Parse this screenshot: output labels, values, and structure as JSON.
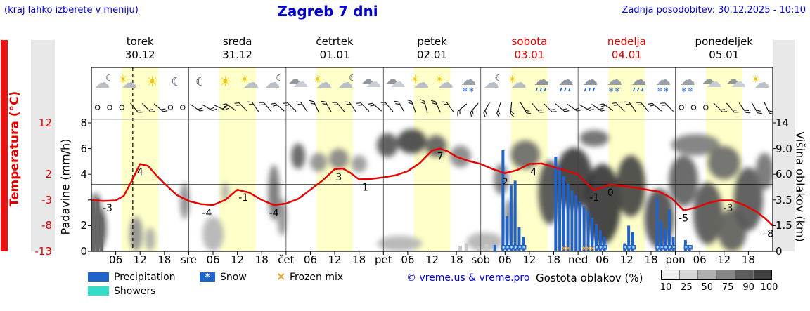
{
  "header": {
    "hint": "(kraj lahko izberete v meniju)",
    "title": "Zagreb 7 dni",
    "updated": "Zadnja posodobitev: 30.12.2025 - 10:10"
  },
  "colors": {
    "blue": "#0000cc",
    "red": "#dd0000",
    "temp_line": "#e60000",
    "precipitation": "#1f63c9",
    "showers": "#35dcc8",
    "frozen": "#f0a028",
    "daylight_band": "#ffffc9",
    "axis_strip": "#e8e8e8",
    "left_strip": "#ee1111",
    "colorbar": [
      "#efefef",
      "#d8d8d8",
      "#b0b0b0",
      "#868686",
      "#5c5c5c",
      "#3f3f3f"
    ]
  },
  "axes": {
    "left_temp": {
      "label": "Temperatura (°C)",
      "ticks": [
        "12",
        "2",
        "-3",
        "-8",
        "-13"
      ]
    },
    "left_precip": {
      "label": "Padavine (mm/h)",
      "ticks": [
        "8",
        "6",
        "4",
        "2",
        "0"
      ]
    },
    "right_cloud": {
      "label": "Višina oblakov (km)",
      "ticks": [
        "14",
        "9.0",
        "6.0",
        "3.5",
        "1.5",
        "0"
      ]
    }
  },
  "days": [
    {
      "name": "torek",
      "date": "30.12",
      "highlight": false,
      "icons": [
        "cloud-moon",
        "sun-cloud",
        "sun",
        "moon"
      ]
    },
    {
      "name": "sreda",
      "date": "31.12",
      "highlight": false,
      "icons": [
        "moon",
        "sun",
        "sun-cloud",
        "cloud-moon"
      ]
    },
    {
      "name": "četrtek",
      "date": "01.01",
      "highlight": false,
      "icons": [
        "cloud",
        "sun-cloud",
        "cloud-moon",
        "cloud"
      ]
    },
    {
      "name": "petek",
      "date": "02.01",
      "highlight": false,
      "icons": [
        "cloud",
        "sun-cloud",
        "sun-cloud",
        "cloud-snow"
      ]
    },
    {
      "name": "sobota",
      "date": "03.01",
      "highlight": true,
      "icons": [
        "cloud-moon",
        "sun-cloud",
        "cloud-rain",
        "cloud-rain"
      ]
    },
    {
      "name": "nedelja",
      "date": "04.01",
      "highlight": true,
      "icons": [
        "cloud-rain",
        "cloud-snow",
        "cloud-rain",
        "cloud-snow"
      ]
    },
    {
      "name": "ponedeljek",
      "date": "05.01",
      "highlight": false,
      "icons": [
        "cloud-snow",
        "cloud",
        "cloud",
        "sun-cloud"
      ]
    }
  ],
  "xticks": [
    {
      "label": "06",
      "t": 6
    },
    {
      "label": "12",
      "t": 12
    },
    {
      "label": "18",
      "t": 18
    },
    {
      "label": "sre",
      "t": 24
    },
    {
      "label": "06",
      "t": 30
    },
    {
      "label": "12",
      "t": 36
    },
    {
      "label": "18",
      "t": 42
    },
    {
      "label": "čet",
      "t": 48
    },
    {
      "label": "06",
      "t": 54
    },
    {
      "label": "12",
      "t": 60
    },
    {
      "label": "18",
      "t": 66
    },
    {
      "label": "pet",
      "t": 72
    },
    {
      "label": "06",
      "t": 78
    },
    {
      "label": "12",
      "t": 84
    },
    {
      "label": "18",
      "t": 90
    },
    {
      "label": "sob",
      "t": 96
    },
    {
      "label": "06",
      "t": 102
    },
    {
      "label": "12",
      "t": 108
    },
    {
      "label": "18",
      "t": 114
    },
    {
      "label": "ned",
      "t": 120
    },
    {
      "label": "06",
      "t": 126
    },
    {
      "label": "12",
      "t": 132
    },
    {
      "label": "18",
      "t": 138
    },
    {
      "label": "pon",
      "t": 144
    },
    {
      "label": "06",
      "t": 150
    },
    {
      "label": "12",
      "t": 156
    },
    {
      "label": "18",
      "t": 162
    }
  ],
  "legend": {
    "precipitation": "Precipitation",
    "snow": "Snow",
    "frozen": "Frozen mix",
    "showers": "Showers",
    "snow_symbol": "*",
    "frozen_symbol": "×",
    "credit": "© vreme.us & vreme.pro",
    "cloud_density": {
      "label": "Gostota oblakov (%)",
      "ticks": [
        "10",
        "25",
        "50",
        "75",
        "90",
        "100"
      ]
    }
  },
  "chart_data": {
    "type": "line",
    "x_unit": "hours from 30.12 00:00",
    "ylim_temp": [
      -13,
      12
    ],
    "ylim_precip": [
      0,
      8
    ],
    "cloud_height_ticks_km": [
      0,
      1.5,
      3.5,
      6,
      9,
      14
    ],
    "now_t": 10.2,
    "zero_line_c": 0,
    "daylight": {
      "start_h": 7.5,
      "end_h": 16.5
    },
    "temperature": {
      "x": [
        0,
        3,
        6,
        8,
        10,
        12,
        14,
        16,
        18,
        21,
        24,
        27,
        30,
        33,
        36,
        39,
        42,
        45,
        48,
        51,
        54,
        57,
        60,
        62,
        64,
        66,
        69,
        72,
        75,
        78,
        81,
        84,
        86,
        88,
        90,
        93,
        96,
        99,
        102,
        105,
        108,
        111,
        114,
        117,
        120,
        122,
        124,
        126,
        128,
        131,
        134,
        137,
        140,
        143,
        146,
        149,
        152,
        155,
        158,
        161,
        164,
        166,
        168
      ],
      "c": [
        -3,
        -3.2,
        -3.1,
        -2.2,
        0.8,
        4,
        3.6,
        1.8,
        0.2,
        -2,
        -3.2,
        -3.8,
        -4,
        -3,
        -1,
        -1.6,
        -3,
        -4,
        -3.7,
        -2.8,
        -1,
        0.8,
        3,
        3.1,
        2.2,
        1,
        1.1,
        1.4,
        1.8,
        2.6,
        4.2,
        6.6,
        7,
        6.4,
        5.4,
        4.6,
        4,
        3,
        2.2,
        2.8,
        4,
        4.1,
        3.4,
        2.7,
        2,
        0.3,
        -1.1,
        -0.5,
        0,
        -0.3,
        -0.6,
        -1,
        -1.4,
        -2.6,
        -5,
        -4.5,
        -3.6,
        -3.1,
        -3.1,
        -4,
        -5.3,
        -6.5,
        -8
      ]
    },
    "temp_labels": [
      {
        "t": 4,
        "v": -3
      },
      {
        "t": 12,
        "v": 4
      },
      {
        "t": 28.5,
        "v": -4
      },
      {
        "t": 37.5,
        "v": -1
      },
      {
        "t": 45,
        "v": -4
      },
      {
        "t": 61,
        "v": 3
      },
      {
        "t": 67.5,
        "v": 1
      },
      {
        "t": 86,
        "v": 7
      },
      {
        "t": 102,
        "v": 2
      },
      {
        "t": 109,
        "v": 4
      },
      {
        "t": 124,
        "v": -1
      },
      {
        "t": 128,
        "v": 0
      },
      {
        "t": 146,
        "v": -5
      },
      {
        "t": 157,
        "v": -3
      },
      {
        "t": 167,
        "v": -8
      }
    ],
    "precipitation_bars": [
      {
        "t": 99,
        "v": 0.4
      },
      {
        "t": 101,
        "v": 6.3
      },
      {
        "t": 102,
        "v": 2.2
      },
      {
        "t": 103,
        "v": 4.1
      },
      {
        "t": 104,
        "v": 4.4
      },
      {
        "t": 105,
        "v": 1.5
      },
      {
        "t": 106,
        "v": 0.9
      },
      {
        "t": 114,
        "v": 5.9
      },
      {
        "t": 115,
        "v": 5.3
      },
      {
        "t": 116,
        "v": 4.7
      },
      {
        "t": 117,
        "v": 4.2
      },
      {
        "t": 118,
        "v": 3.8
      },
      {
        "t": 119,
        "v": 3.5
      },
      {
        "t": 120,
        "v": 3.1
      },
      {
        "t": 121,
        "v": 2.8
      },
      {
        "t": 122,
        "v": 2.5
      },
      {
        "t": 123,
        "v": 2.1
      },
      {
        "t": 124,
        "v": 1.7
      },
      {
        "t": 125,
        "v": 1.3
      },
      {
        "t": 126,
        "v": 0.9
      },
      {
        "t": 131,
        "v": 0.5
      },
      {
        "t": 132,
        "v": 1.6
      },
      {
        "t": 133,
        "v": 1.2
      },
      {
        "t": 139,
        "v": 3.3
      },
      {
        "t": 140,
        "v": 1.9
      },
      {
        "t": 141,
        "v": 1.4
      },
      {
        "t": 142,
        "v": 2.6
      },
      {
        "t": 143,
        "v": 0.9
      },
      {
        "t": 146,
        "v": 0.7
      },
      {
        "t": 147,
        "v": 0.4
      }
    ],
    "snow_markers": [
      101,
      102,
      103,
      104,
      105,
      106,
      124,
      125,
      126,
      131,
      132,
      133,
      139,
      140,
      141,
      142,
      143,
      146,
      147
    ],
    "frozen_markers": [
      116,
      117,
      121,
      122,
      123
    ],
    "ground_gray_bars": [
      {
        "t": 0.1,
        "v": 3.1
      },
      {
        "t": 1.1,
        "v": 3.3
      },
      {
        "t": 2.1,
        "v": 2.1
      }
    ],
    "low_gray_bars": [
      {
        "t": 90.5,
        "v": 0.35
      },
      {
        "t": 92,
        "v": 0.5
      },
      {
        "t": 95,
        "v": 0.3
      },
      {
        "t": 97,
        "v": 0.45
      },
      {
        "t": 99,
        "v": 0.3
      }
    ],
    "cloud_blobs": [
      {
        "t": 1.5,
        "h": 1.5,
        "rt": 2.2,
        "rh": 1.6,
        "d": 0.85
      },
      {
        "t": 1,
        "h": 3.3,
        "rt": 1.4,
        "rh": 0.9,
        "d": 0.6
      },
      {
        "t": 11,
        "h": 1.1,
        "rt": 1.6,
        "rh": 1.1,
        "d": 0.5
      },
      {
        "t": 14.5,
        "h": 0.7,
        "rt": 1.2,
        "rh": 0.7,
        "d": 0.35
      },
      {
        "t": 23,
        "h": 3.6,
        "rt": 1.1,
        "rh": 1.6,
        "d": 0.55
      },
      {
        "t": 30,
        "h": 1.1,
        "rt": 2.6,
        "rh": 1.1,
        "d": 0.3
      },
      {
        "t": 33,
        "h": 4.3,
        "rt": 0.9,
        "rh": 0.9,
        "d": 0.35
      },
      {
        "t": 45,
        "h": 4.5,
        "rt": 1.4,
        "rh": 2.6,
        "d": 0.65
      },
      {
        "t": 47,
        "h": 2.3,
        "rt": 1.1,
        "rh": 1.4,
        "d": 0.5
      },
      {
        "t": 51,
        "h": 8.3,
        "rt": 1.7,
        "rh": 1.7,
        "d": 0.75
      },
      {
        "t": 56,
        "h": 7.4,
        "rt": 2.1,
        "rh": 1.1,
        "d": 0.5
      },
      {
        "t": 61,
        "h": 7.8,
        "rt": 2.4,
        "rh": 1.2,
        "d": 0.55
      },
      {
        "t": 66,
        "h": 7.2,
        "rt": 1.9,
        "rh": 1,
        "d": 0.45
      },
      {
        "t": 73,
        "h": 10,
        "rt": 2.6,
        "rh": 2,
        "d": 0.8
      },
      {
        "t": 79,
        "h": 10.6,
        "rt": 3.6,
        "rh": 2.2,
        "d": 0.9
      },
      {
        "t": 85,
        "h": 9.8,
        "rt": 2.6,
        "rh": 1.8,
        "d": 0.75
      },
      {
        "t": 76,
        "h": 0.4,
        "rt": 5.5,
        "rh": 0.5,
        "d": 0.3
      },
      {
        "t": 91,
        "h": 8.2,
        "rt": 2.6,
        "rh": 1.4,
        "d": 0.55
      },
      {
        "t": 97,
        "h": 0.5,
        "rt": 4.5,
        "rh": 0.6,
        "d": 0.3
      },
      {
        "t": 101,
        "h": 5.6,
        "rt": 1.8,
        "rh": 1.6,
        "d": 0.6
      },
      {
        "t": 103,
        "h": 2,
        "rt": 1.4,
        "rh": 1.6,
        "d": 0.5
      },
      {
        "t": 107,
        "h": 8.6,
        "rt": 3.6,
        "rh": 2,
        "d": 0.7
      },
      {
        "t": 113,
        "h": 4.6,
        "rt": 2.8,
        "rh": 3,
        "d": 0.85
      },
      {
        "t": 119,
        "h": 6,
        "rt": 4.5,
        "rh": 3.2,
        "d": 0.95
      },
      {
        "t": 126,
        "h": 3.8,
        "rt": 4.5,
        "rh": 3.4,
        "d": 0.97
      },
      {
        "t": 124,
        "h": 11,
        "rt": 3.6,
        "rh": 1.6,
        "d": 0.7
      },
      {
        "t": 133,
        "h": 5.2,
        "rt": 3.6,
        "rh": 3,
        "d": 0.9
      },
      {
        "t": 140,
        "h": 2.4,
        "rt": 3.6,
        "rh": 2.2,
        "d": 0.85
      },
      {
        "t": 146,
        "h": 5.6,
        "rt": 3.6,
        "rh": 2.6,
        "d": 0.75
      },
      {
        "t": 149,
        "h": 10,
        "rt": 6,
        "rh": 1.8,
        "d": 0.6
      },
      {
        "t": 152,
        "h": 2.8,
        "rt": 3.6,
        "rh": 2.4,
        "d": 0.8
      },
      {
        "t": 158,
        "h": 1.4,
        "rt": 3.6,
        "rh": 1.4,
        "d": 0.75
      },
      {
        "t": 162,
        "h": 4,
        "rt": 3.6,
        "rh": 2.8,
        "d": 0.8
      },
      {
        "t": 166,
        "h": 6.5,
        "rt": 2.2,
        "rh": 2,
        "d": 0.65
      },
      {
        "t": 156,
        "h": 7.5,
        "rt": 4,
        "rh": 2,
        "d": 0.7
      }
    ],
    "wind_barbs": [
      "O",
      "O",
      "O",
      50,
      45,
      40,
      "O",
      "O",
      35,
      30,
      25,
      215,
      225,
      235,
      230,
      220,
      225,
      235,
      245,
      240,
      230,
      235,
      225,
      220,
      230,
      240,
      250,
      255,
      245,
      235,
      140,
      130,
      120,
      110,
      95,
      60,
      50,
      45,
      40,
      35,
      30,
      35,
      215,
      225,
      235,
      230,
      220,
      225,
      "O",
      "O",
      "O",
      45,
      50,
      55,
      60,
      65
    ]
  }
}
